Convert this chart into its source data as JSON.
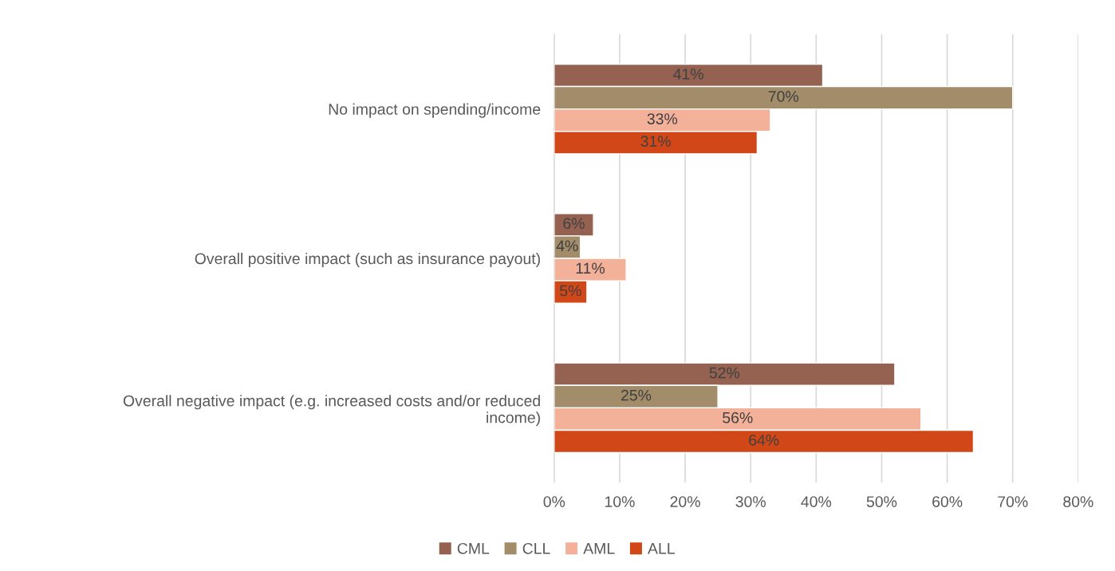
{
  "chart_data": {
    "type": "bar",
    "orientation": "horizontal",
    "categories": [
      "No impact on spending/income",
      "Overall positive impact (such as insurance payout)",
      "Overall negative impact (e.g. increased costs and/or reduced\nincome)"
    ],
    "series": [
      {
        "name": "CML",
        "color": "#956251",
        "values": [
          41,
          6,
          52
        ],
        "value_labels": [
          "41%",
          "6%",
          "52%"
        ]
      },
      {
        "name": "CLL",
        "color": "#a38c6a",
        "values": [
          70,
          4,
          25
        ],
        "value_labels": [
          "70%",
          "4%",
          "25%"
        ]
      },
      {
        "name": "AML",
        "color": "#f4b19a",
        "values": [
          33,
          11,
          56
        ],
        "value_labels": [
          "33%",
          "11%",
          "56%"
        ]
      },
      {
        "name": "ALL",
        "color": "#d24717",
        "values": [
          31,
          5,
          64
        ],
        "value_labels": [
          "31%",
          "5%",
          "64%"
        ]
      }
    ],
    "xlim": [
      0,
      80
    ],
    "xticks": [
      {
        "value": 0,
        "label": "0%"
      },
      {
        "value": 10,
        "label": "10%"
      },
      {
        "value": 20,
        "label": "20%"
      },
      {
        "value": 30,
        "label": "30%"
      },
      {
        "value": 40,
        "label": "40%"
      },
      {
        "value": 50,
        "label": "50%"
      },
      {
        "value": 60,
        "label": "60%"
      },
      {
        "value": 70,
        "label": "70%"
      },
      {
        "value": 80,
        "label": "80%"
      }
    ],
    "grid": "x",
    "legend": "bottom"
  }
}
